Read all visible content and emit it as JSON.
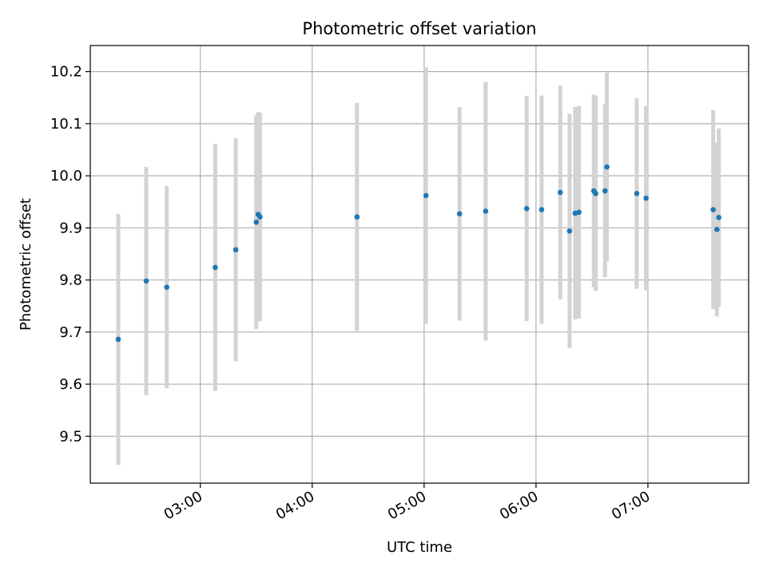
{
  "chart_data": {
    "type": "scatter",
    "title": "Photometric offset variation",
    "xlabel": "UTC time",
    "ylabel": "Photometric offset",
    "x_unit": "UTC time (HH:MM)",
    "xlim": [
      "02:01",
      "07:54"
    ],
    "ylim": [
      9.41,
      10.25
    ],
    "xticks": [
      "03:00",
      "04:00",
      "05:00",
      "06:00",
      "07:00"
    ],
    "yticks": [
      9.5,
      9.6,
      9.7,
      9.8,
      9.9,
      10.0,
      10.1,
      10.2
    ],
    "ytick_labels": [
      "9.5",
      "9.6",
      "9.7",
      "9.8",
      "9.9",
      "10.0",
      "10.1",
      "10.2"
    ],
    "grid": true,
    "colors": {
      "point": "#1f77b4",
      "errorbar": "#d3d3d3",
      "grid": "#b0b0b0"
    },
    "points": [
      {
        "x": "02:16",
        "y": 9.686,
        "yerr": 0.241
      },
      {
        "x": "02:31",
        "y": 9.798,
        "yerr": 0.219
      },
      {
        "x": "02:42",
        "y": 9.786,
        "yerr": 0.194
      },
      {
        "x": "03:08",
        "y": 9.824,
        "yerr": 0.237
      },
      {
        "x": "03:19",
        "y": 9.858,
        "yerr": 0.214
      },
      {
        "x": "03:30",
        "y": 9.911,
        "yerr": 0.205
      },
      {
        "x": "03:31",
        "y": 9.926,
        "yerr": 0.196
      },
      {
        "x": "03:32",
        "y": 9.921,
        "yerr": 0.2
      },
      {
        "x": "04:24",
        "y": 9.921,
        "yerr": 0.219
      },
      {
        "x": "05:01",
        "y": 9.962,
        "yerr": 0.246
      },
      {
        "x": "05:19",
        "y": 9.927,
        "yerr": 0.205
      },
      {
        "x": "05:33",
        "y": 9.932,
        "yerr": 0.248
      },
      {
        "x": "05:55",
        "y": 9.937,
        "yerr": 0.216
      },
      {
        "x": "06:03",
        "y": 9.935,
        "yerr": 0.219
      },
      {
        "x": "06:13",
        "y": 9.968,
        "yerr": 0.205
      },
      {
        "x": "06:18",
        "y": 9.894,
        "yerr": 0.225
      },
      {
        "x": "06:21",
        "y": 9.928,
        "yerr": 0.204
      },
      {
        "x": "06:23",
        "y": 9.93,
        "yerr": 0.204
      },
      {
        "x": "06:31",
        "y": 9.971,
        "yerr": 0.185
      },
      {
        "x": "06:32",
        "y": 9.966,
        "yerr": 0.187
      },
      {
        "x": "06:37",
        "y": 9.971,
        "yerr": 0.166
      },
      {
        "x": "06:38",
        "y": 10.017,
        "yerr": 0.181
      },
      {
        "x": "06:54",
        "y": 9.966,
        "yerr": 0.183
      },
      {
        "x": "06:59",
        "y": 9.957,
        "yerr": 0.177
      },
      {
        "x": "07:35",
        "y": 9.935,
        "yerr": 0.191
      },
      {
        "x": "07:37",
        "y": 9.897,
        "yerr": 0.167
      },
      {
        "x": "07:38",
        "y": 9.92,
        "yerr": 0.171
      }
    ]
  }
}
